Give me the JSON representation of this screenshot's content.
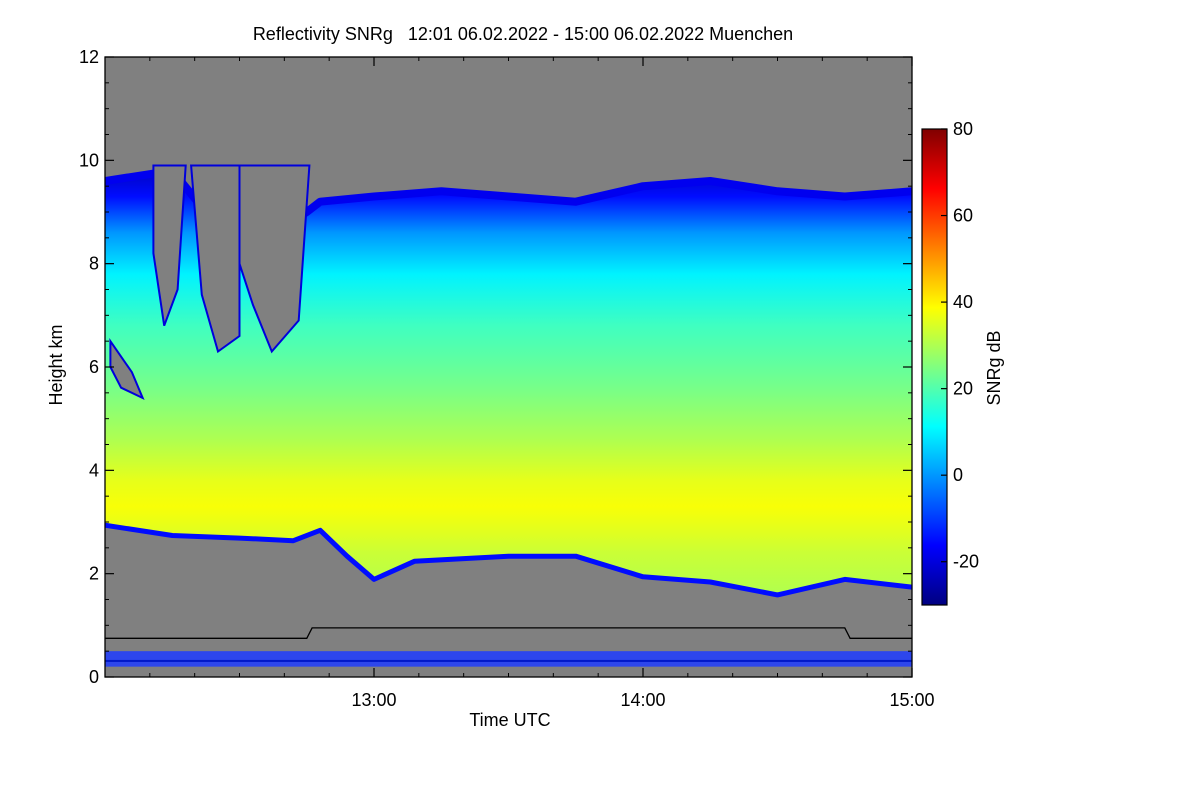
{
  "chart_data": {
    "type": "heatmap",
    "title": "Reflectivity SNRg   12:01 06.02.2022 - 15:00 06.02.2022 Muenchen",
    "xlabel": "Time UTC",
    "ylabel": "Height km",
    "x_range_hours": [
      12.0,
      15.0
    ],
    "xticks": [
      {
        "value": 13.0,
        "label": "13:00"
      },
      {
        "value": 14.0,
        "label": "14:00"
      },
      {
        "value": 15.0,
        "label": "15:00"
      }
    ],
    "ylim": [
      0,
      12
    ],
    "yticks": [
      {
        "value": 0,
        "label": "0"
      },
      {
        "value": 2,
        "label": "2"
      },
      {
        "value": 4,
        "label": "4"
      },
      {
        "value": 6,
        "label": "6"
      },
      {
        "value": 8,
        "label": "8"
      },
      {
        "value": 10,
        "label": "10"
      },
      {
        "value": 12,
        "label": "12"
      }
    ],
    "colorbar": {
      "label": "SNRg dB",
      "range": [
        -30,
        80
      ],
      "ticks": [
        {
          "value": -20,
          "label": "-20"
        },
        {
          "value": 0,
          "label": "0"
        },
        {
          "value": 20,
          "label": "20"
        },
        {
          "value": 40,
          "label": "40"
        },
        {
          "value": 60,
          "label": "60"
        },
        {
          "value": 80,
          "label": "80"
        }
      ],
      "colors": [
        "#000080",
        "#0000ff",
        "#0080ff",
        "#00ffff",
        "#80ff80",
        "#ffff00",
        "#ff8000",
        "#ff0000",
        "#800000"
      ]
    },
    "missing_color": "#808080",
    "echo_top_km": [
      [
        12.0,
        9.6
      ],
      [
        12.25,
        9.8
      ],
      [
        12.5,
        8.2
      ],
      [
        12.75,
        9.0
      ],
      [
        12.8,
        9.2
      ],
      [
        13.0,
        9.3
      ],
      [
        13.25,
        9.4
      ],
      [
        13.5,
        9.3
      ],
      [
        13.75,
        9.2
      ],
      [
        14.0,
        9.5
      ],
      [
        14.25,
        9.6
      ],
      [
        14.5,
        9.4
      ],
      [
        14.75,
        9.3
      ],
      [
        15.0,
        9.4
      ]
    ],
    "echo_base_km": [
      [
        12.0,
        2.9
      ],
      [
        12.25,
        2.7
      ],
      [
        12.5,
        2.65
      ],
      [
        12.7,
        2.6
      ],
      [
        12.8,
        2.8
      ],
      [
        12.9,
        2.3
      ],
      [
        13.0,
        1.85
      ],
      [
        13.15,
        2.2
      ],
      [
        13.5,
        2.3
      ],
      [
        13.75,
        2.3
      ],
      [
        14.0,
        1.9
      ],
      [
        14.25,
        1.8
      ],
      [
        14.5,
        1.55
      ],
      [
        14.75,
        1.85
      ],
      [
        15.0,
        1.7
      ]
    ],
    "core_band_km": [
      2.9,
      3.6
    ],
    "core_snr_db": 38,
    "reference_line_km": [
      [
        12.0,
        0.75
      ],
      [
        12.75,
        0.75
      ],
      [
        12.77,
        0.95
      ],
      [
        14.75,
        0.95
      ],
      [
        14.77,
        0.75
      ],
      [
        15.0,
        0.75
      ]
    ],
    "clutter_band_km": [
      0.2,
      0.5
    ]
  }
}
